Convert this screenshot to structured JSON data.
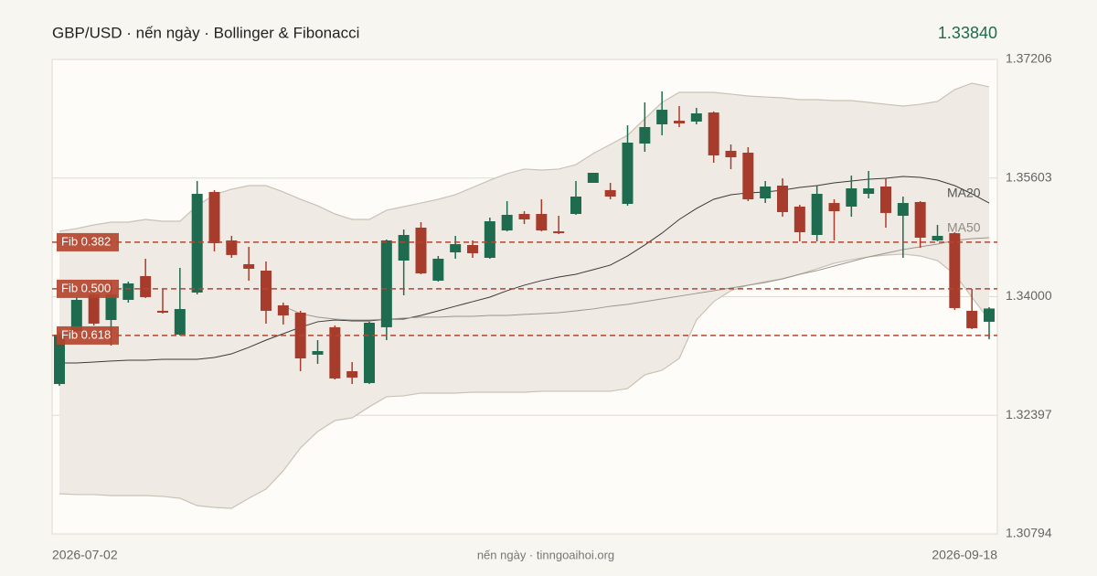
{
  "chart_data": {
    "type": "candlestick",
    "title": "GBP/USD · nến ngày · Bollinger & Fibonacci",
    "last_price": {
      "value": 1.3384,
      "label": "1.33840"
    },
    "footer": "nến ngày · tinngoaihoi.org",
    "up_color": "#1f6b4f",
    "down_color": "#a83c2c",
    "categories": [
      "2026-07-02",
      null,
      null,
      null,
      null,
      null,
      null,
      null,
      null,
      null,
      null,
      null,
      null,
      null,
      null,
      null,
      null,
      null,
      null,
      null,
      null,
      null,
      null,
      null,
      null,
      null,
      null,
      null,
      null,
      null,
      null,
      null,
      null,
      null,
      null,
      null,
      null,
      null,
      null,
      null,
      null,
      null,
      null,
      null,
      null,
      null,
      null,
      null,
      null,
      null,
      null,
      null,
      null,
      null,
      "2026-09-18"
    ],
    "open": [
      1.3282,
      1.33537,
      1.34031,
      1.33685,
      1.33957,
      1.34278,
      1.33809,
      1.33488,
      1.34056,
      1.35415,
      1.3476,
      1.34439,
      1.34352,
      1.33883,
      1.33784,
      1.33216,
      1.33587,
      1.32993,
      1.32833,
      1.33587,
      1.34488,
      1.34933,
      1.34216,
      1.34599,
      1.34698,
      1.34525,
      1.34895,
      1.35118,
      1.35118,
      1.34883,
      1.35118,
      1.35538,
      1.3544,
      1.35254,
      1.36069,
      1.36329,
      1.36378,
      1.36366,
      1.36489,
      1.35971,
      1.35946,
      1.35328,
      1.35501,
      1.35217,
      1.34834,
      1.35266,
      1.35217,
      1.3539,
      1.35489,
      1.35093,
      1.35279,
      1.3476,
      1.34858,
      1.33809,
      1.33661
    ],
    "high": [
      1.33512,
      1.33994,
      1.34105,
      1.34204,
      1.34204,
      1.34513,
      1.34105,
      1.34389,
      1.35563,
      1.3544,
      1.34822,
      1.34674,
      1.34476,
      1.3392,
      1.33809,
      1.33413,
      1.33611,
      1.33117,
      1.33661,
      1.34772,
      1.34908,
      1.35007,
      1.3455,
      1.34822,
      1.3476,
      1.35069,
      1.35291,
      1.35155,
      1.35316,
      1.35093,
      1.35563,
      1.35674,
      1.35538,
      1.36316,
      1.36625,
      1.36774,
      1.36576,
      1.36551,
      1.36502,
      1.36057,
      1.3602,
      1.35563,
      1.356,
      1.35242,
      1.35501,
      1.35316,
      1.35637,
      1.35699,
      1.356,
      1.35353,
      1.35291,
      1.3497,
      1.34871,
      1.34105,
      1.33858
    ],
    "low": [
      1.32795,
      1.335,
      1.33611,
      1.33339,
      1.3392,
      1.33982,
      1.33772,
      1.33476,
      1.34031,
      1.34612,
      1.34525,
      1.34216,
      1.33636,
      1.33624,
      1.32993,
      1.33092,
      1.32882,
      1.3282,
      1.3282,
      1.33413,
      1.34019,
      1.34303,
      1.34204,
      1.34513,
      1.34525,
      1.34513,
      1.34883,
      1.34982,
      1.34883,
      1.34846,
      1.35106,
      1.35538,
      1.35316,
      1.35229,
      1.35958,
      1.36181,
      1.36292,
      1.36329,
      1.3581,
      1.35723,
      1.35291,
      1.35266,
      1.35081,
      1.34748,
      1.34748,
      1.3476,
      1.35081,
      1.35328,
      1.34933,
      1.34525,
      1.34661,
      1.34748,
      1.33821,
      1.33562,
      1.33426
    ],
    "close": [
      1.33487,
      1.33957,
      1.33636,
      1.34031,
      1.34179,
      1.33994,
      1.33784,
      1.33833,
      1.3539,
      1.34723,
      1.34563,
      1.34377,
      1.33809,
      1.33747,
      1.33166,
      1.33265,
      1.32895,
      1.32907,
      1.33648,
      1.3476,
      1.34834,
      1.34315,
      1.34513,
      1.3471,
      1.34587,
      1.35019,
      1.35106,
      1.35044,
      1.34895,
      1.34858,
      1.35353,
      1.35674,
      1.35353,
      1.36082,
      1.36292,
      1.36526,
      1.36341,
      1.36477,
      1.35909,
      1.35884,
      1.35316,
      1.35489,
      1.35143,
      1.34871,
      1.3539,
      1.35155,
      1.35464,
      1.35464,
      1.35131,
      1.35266,
      1.34797,
      1.34822,
      1.33846,
      1.33574,
      1.3384
    ],
    "bollinger": {
      "color": "#c9c2b5",
      "fill": "#efebe4",
      "upper": [
        1.34884,
        1.34921,
        1.3497,
        1.35007,
        1.35007,
        1.35044,
        1.35019,
        1.35019,
        1.35229,
        1.35378,
        1.35452,
        1.35501,
        1.35501,
        1.35415,
        1.35316,
        1.35229,
        1.35118,
        1.35044,
        1.35044,
        1.35168,
        1.35217,
        1.35266,
        1.35316,
        1.35378,
        1.35476,
        1.35575,
        1.35662,
        1.35724,
        1.35711,
        1.35724,
        1.35785,
        1.35934,
        1.36057,
        1.36181,
        1.36403,
        1.36625,
        1.36761,
        1.36761,
        1.36761,
        1.36737,
        1.36712,
        1.36699,
        1.36687,
        1.36662,
        1.36662,
        1.3665,
        1.3665,
        1.36625,
        1.366,
        1.36576,
        1.366,
        1.36638,
        1.36798,
        1.36885,
        1.36836
      ],
      "lower": [
        1.31338,
        1.31326,
        1.31326,
        1.31313,
        1.31313,
        1.31313,
        1.31301,
        1.31276,
        1.31177,
        1.31152,
        1.3114,
        1.31276,
        1.314,
        1.31647,
        1.31956,
        1.32178,
        1.32326,
        1.32363,
        1.32512,
        1.32648,
        1.3266,
        1.32697,
        1.32697,
        1.32697,
        1.32709,
        1.32709,
        1.32709,
        1.32709,
        1.32722,
        1.32722,
        1.32722,
        1.32722,
        1.32722,
        1.32759,
        1.32944,
        1.33006,
        1.33166,
        1.33685,
        1.33933,
        1.34081,
        1.34155,
        1.34204,
        1.34241,
        1.34303,
        1.34377,
        1.34451,
        1.34501,
        1.34538,
        1.34562,
        1.34575,
        1.3455,
        1.34488,
        1.34303,
        1.33994,
        1.33685
      ]
    },
    "series": [
      {
        "name": "MA20",
        "color": "#3a3a3a",
        "values": [
          1.33105,
          1.33105,
          1.33117,
          1.3313,
          1.33142,
          1.33142,
          1.33154,
          1.33154,
          1.33154,
          1.33179,
          1.33228,
          1.33315,
          1.33413,
          1.335,
          1.33587,
          1.33661,
          1.33685,
          1.33673,
          1.33673,
          1.33698,
          1.33698,
          1.33747,
          1.33809,
          1.33871,
          1.33933,
          1.33994,
          1.34081,
          1.34155,
          1.34217,
          1.34266,
          1.34303,
          1.34365,
          1.34427,
          1.3455,
          1.34699,
          1.34859,
          1.35044,
          1.35192,
          1.35316,
          1.35378,
          1.35403,
          1.35415,
          1.3544,
          1.35476,
          1.35501,
          1.35538,
          1.35563,
          1.35587,
          1.356,
          1.35625,
          1.35612,
          1.35575,
          1.35501,
          1.3539,
          1.35266
        ]
      },
      {
        "name": "MA50",
        "color": "#9a958c",
        "values": [
          null,
          null,
          null,
          null,
          null,
          null,
          null,
          null,
          null,
          null,
          null,
          null,
          null,
          1.33871,
          1.33772,
          1.33723,
          1.33698,
          1.33685,
          1.33685,
          1.33698,
          1.3371,
          1.33723,
          1.33723,
          1.33735,
          1.33735,
          1.33747,
          1.33747,
          1.3376,
          1.33772,
          1.33784,
          1.33809,
          1.33834,
          1.33871,
          1.33896,
          1.33933,
          1.3397,
          1.34007,
          1.34044,
          1.34081,
          1.34118,
          1.34155,
          1.34192,
          1.34241,
          1.34303,
          1.34353,
          1.34414,
          1.34476,
          1.34538,
          1.34587,
          1.34637,
          1.34674,
          1.34711,
          1.3476,
          1.34785,
          1.34797
        ]
      }
    ],
    "fib_color": "#b5452f",
    "fib_levels": [
      {
        "label": "Fib 0.382",
        "value": 1.34736
      },
      {
        "label": "Fib 0.500",
        "value": 1.34106
      },
      {
        "label": "Fib 0.618",
        "value": 1.33476
      }
    ],
    "ylim": [
      1.30794,
      1.37206
    ],
    "yticks": [
      1.30794,
      1.32397,
      {
        "value": 1.34,
        "label": "1.34000"
      },
      1.35603,
      1.37206
    ],
    "grid": true
  }
}
